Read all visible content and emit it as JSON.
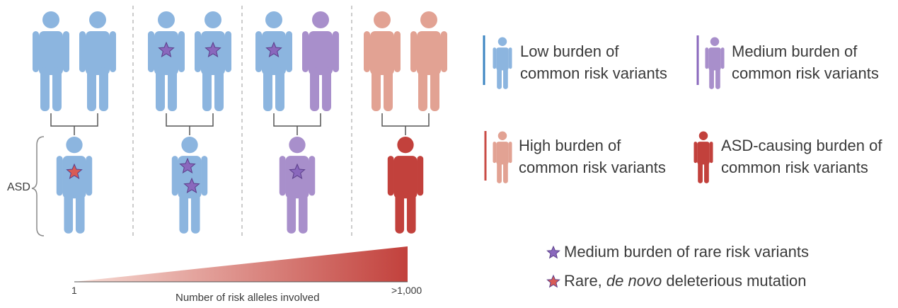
{
  "colors": {
    "low": "#8cb5df",
    "medium": "#a88fcb",
    "high": "#e2a293",
    "asd": "#c2413c",
    "purple_star": "#8a68bd",
    "red_star": "#d95b55",
    "low_bar": "#3b84c2",
    "medium_bar": "#8a68bd",
    "high_bar": "#c94c46"
  },
  "panels": [
    {
      "parents": [
        "low",
        "low"
      ],
      "child": "low",
      "parent_stars": [
        0,
        0
      ],
      "child_stars": [
        {
          "color": "red"
        }
      ]
    },
    {
      "parents": [
        "low",
        "low"
      ],
      "child": "low",
      "parent_stars": [
        1,
        1
      ],
      "child_stars": [
        {
          "color": "purple"
        },
        {
          "color": "purple"
        }
      ]
    },
    {
      "parents": [
        "low",
        "medium"
      ],
      "child": "medium",
      "parent_stars": [
        1,
        0
      ],
      "child_stars": [
        {
          "color": "purple"
        }
      ]
    },
    {
      "parents": [
        "high",
        "high"
      ],
      "child": "asd",
      "parent_stars": [
        0,
        0
      ],
      "child_stars": []
    }
  ],
  "asd_label": "ASD",
  "axis": {
    "start_label": "1",
    "end_label": ">1,000",
    "title": "Number of risk alleles involved"
  },
  "legend": {
    "low": {
      "line1": "Low burden of",
      "line2": "common risk variants"
    },
    "medium": {
      "line1": "Medium burden of",
      "line2": "common risk variants"
    },
    "high": {
      "line1": "High burden of",
      "line2": "common risk variants"
    },
    "asd": {
      "line1": "ASD-causing burden of",
      "line2": "common risk variants"
    }
  },
  "star_legend": {
    "purple_text": "Medium burden of rare risk variants",
    "red_prefix": "Rare,",
    "red_italic": "de novo",
    "red_suffix": "deleterious mutation"
  }
}
